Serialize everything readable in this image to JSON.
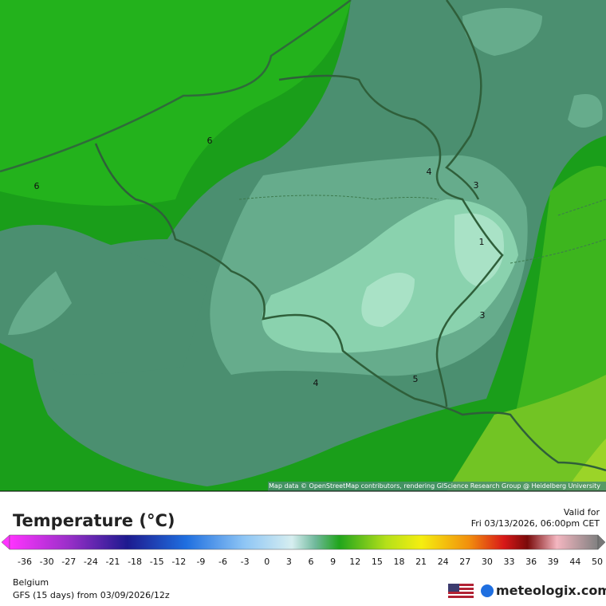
{
  "map": {
    "contour_labels": [
      "6",
      "6",
      "4",
      "3",
      "1",
      "3",
      "4",
      "5"
    ],
    "attribution": "Map data © OpenStreetMap contributors, rendering GIScience Research Group @ Heidelberg University"
  },
  "header": {
    "title": "Temperature (°C)",
    "valid_label": "Valid for",
    "valid_time": "Fri 03/13/2026, 06:00pm CET"
  },
  "legend": {
    "ticks": [
      -36,
      -30,
      -27,
      -24,
      -21,
      -18,
      -15,
      -12,
      -9,
      -6,
      -3,
      0,
      3,
      6,
      9,
      12,
      15,
      18,
      21,
      24,
      27,
      30,
      33,
      36,
      39,
      44,
      50
    ]
  },
  "footer": {
    "region": "Belgium",
    "model": "GFS (15 days) from 03/09/2026/12z",
    "brand": "meteologix.com"
  }
}
